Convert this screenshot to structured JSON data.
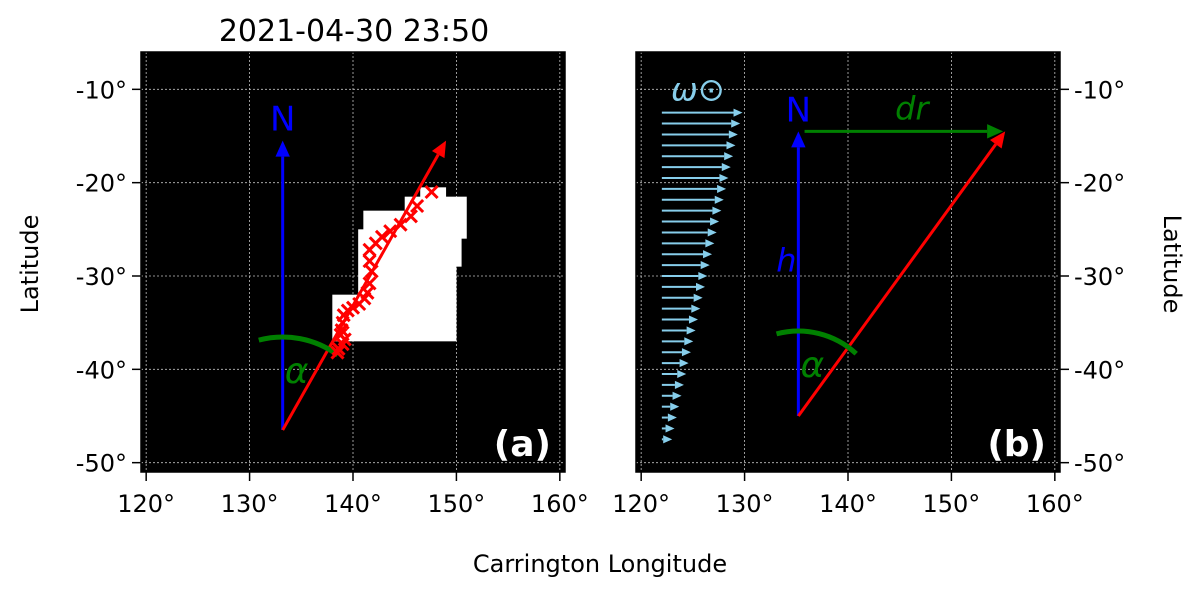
{
  "title": "2021-04-30 23:50",
  "xlabel": "Carrington Longitude",
  "ylabel": "Latitude",
  "chart_data": [
    {
      "panel_label": "(a)",
      "type": "scatter",
      "xlim": [
        119.5,
        160.5
      ],
      "ylim": [
        -51,
        -6
      ],
      "xticks": [
        {
          "v": 120,
          "label": "120°"
        },
        {
          "v": 130,
          "label": "130°"
        },
        {
          "v": 140,
          "label": "140°"
        },
        {
          "v": 150,
          "label": "150°"
        },
        {
          "v": 160,
          "label": "160°"
        }
      ],
      "yticks": [
        {
          "v": -10,
          "label": "-10°"
        },
        {
          "v": -20,
          "label": "-20°"
        },
        {
          "v": -30,
          "label": "-30°"
        },
        {
          "v": -40,
          "label": "-40°"
        },
        {
          "v": -50,
          "label": "-50°"
        }
      ],
      "grid": true,
      "north_arrow": {
        "label": "N",
        "x": 133.2,
        "y0": -46.5,
        "y1": -15.5,
        "color": "#0000ff"
      },
      "tilt_arrow": {
        "x0": 133.2,
        "y0": -46.5,
        "x1": 149.0,
        "y1": -15.5,
        "color": "#ff0000"
      },
      "alpha": {
        "label": "α",
        "color": "#008000"
      },
      "region_color": "#ffffff",
      "marker_color": "#ff0000",
      "region_blocks": [
        [
          138.0,
          150.0,
          -37.0,
          -32.0
        ],
        [
          140.5,
          150.0,
          -34.0,
          -25.0
        ],
        [
          141.0,
          150.5,
          -29.0,
          -23.0
        ],
        [
          145.0,
          151.0,
          -26.0,
          -21.5
        ],
        [
          146.5,
          149.0,
          -22.0,
          -20.5
        ]
      ],
      "series": [
        {
          "x": [
            147.6,
            146.2,
            145.6,
            144.6,
            143.6,
            142.8,
            142.2,
            141.6,
            141.6,
            141.8,
            141.6,
            141.4,
            141.1,
            140.6,
            140.0,
            139.5,
            139.1,
            139.0,
            138.9,
            138.8,
            139.2,
            139.0,
            138.6,
            138.5
          ],
          "y": [
            -21.0,
            -22.5,
            -23.6,
            -24.5,
            -25.2,
            -25.8,
            -26.5,
            -27.2,
            -28.4,
            -29.5,
            -30.8,
            -31.8,
            -32.4,
            -33.0,
            -33.4,
            -33.7,
            -34.2,
            -35.0,
            -35.8,
            -36.3,
            -36.8,
            -37.3,
            -37.8,
            -38.2
          ]
        }
      ]
    },
    {
      "panel_label": "(b)",
      "type": "diagram",
      "xlim": [
        119.5,
        160.5
      ],
      "ylim": [
        -51,
        -6
      ],
      "xticks": [
        {
          "v": 120,
          "label": "120°"
        },
        {
          "v": 130,
          "label": "130°"
        },
        {
          "v": 140,
          "label": "140°"
        },
        {
          "v": 150,
          "label": "150°"
        },
        {
          "v": 160,
          "label": "160°"
        }
      ],
      "yticks": [
        {
          "v": -10,
          "label": "-10°"
        },
        {
          "v": -20,
          "label": "-20°"
        },
        {
          "v": -30,
          "label": "-30°"
        },
        {
          "v": -40,
          "label": "-40°"
        },
        {
          "v": -50,
          "label": "-50°"
        }
      ],
      "grid": true,
      "north_arrow": {
        "label": "N",
        "x": 135.2,
        "y0": -45.0,
        "y1": -14.5,
        "color": "#0000ff"
      },
      "tilt_arrow": {
        "x0": 135.2,
        "y0": -45.0,
        "x1": 155.2,
        "y1": -14.5,
        "color": "#ff0000"
      },
      "dr_arrow": {
        "label": "dr",
        "x0": 135.8,
        "x1": 155.0,
        "y": -14.5,
        "color": "#008000"
      },
      "h_label": "h",
      "alpha": {
        "label": "α",
        "color": "#008000"
      },
      "rotation": {
        "label": "ω⊙",
        "color": "#87ceeb",
        "x0": 122.0,
        "y_top": -12.5,
        "y_bottom": -47.5,
        "x_end_top": 129.8,
        "x_end_bottom": 123.0,
        "count": 31
      }
    }
  ]
}
